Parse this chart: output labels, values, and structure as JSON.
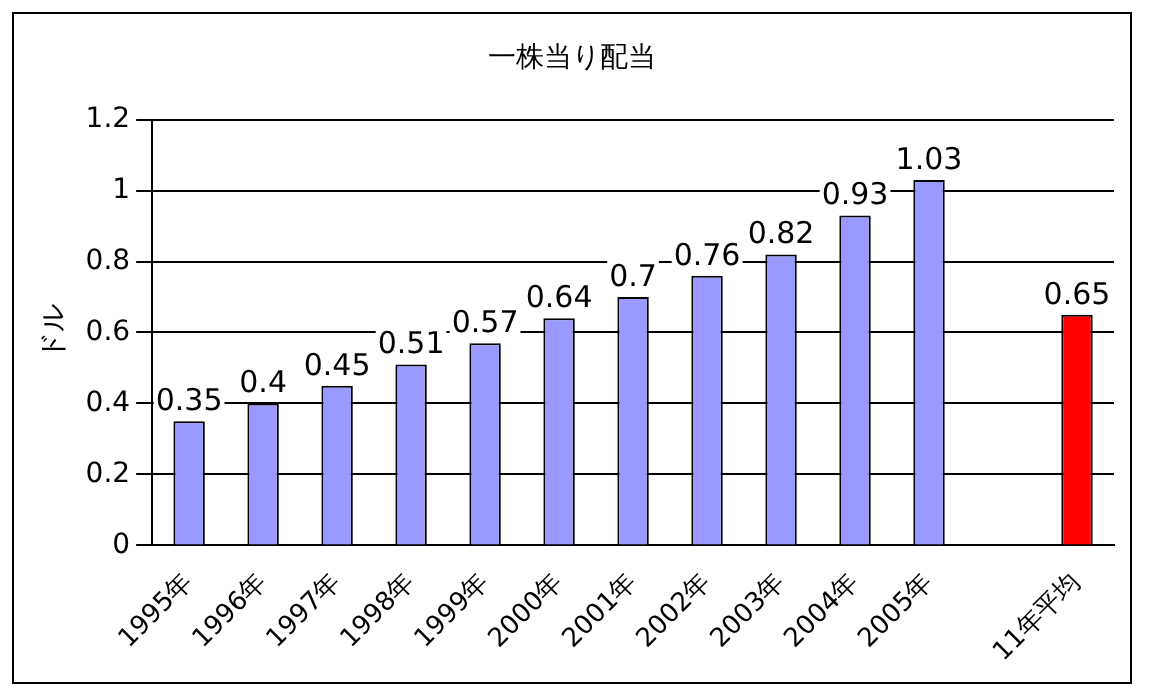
{
  "chart_data": {
    "type": "bar",
    "title": "一株当り配当",
    "ylabel": "ドル",
    "categories": [
      "1995年",
      "1996年",
      "1997年",
      "1998年",
      "1999年",
      "2000年",
      "2001年",
      "2002年",
      "2003年",
      "2004年",
      "2005年",
      null,
      "11年平均"
    ],
    "values": [
      0.35,
      0.4,
      0.45,
      0.51,
      0.57,
      0.64,
      0.7,
      0.76,
      0.82,
      0.93,
      1.03,
      null,
      0.65
    ],
    "colors": [
      "#9999ff",
      "#9999ff",
      "#9999ff",
      "#9999ff",
      "#9999ff",
      "#9999ff",
      "#9999ff",
      "#9999ff",
      "#9999ff",
      "#9999ff",
      "#9999ff",
      "#9999ff",
      "#ff0000"
    ],
    "ylim": [
      0,
      1.2
    ],
    "yticks": [
      0,
      0.2,
      0.4,
      0.6,
      0.8,
      1,
      1.2
    ],
    "grid": "y",
    "legend": false,
    "data_labels": true
  }
}
